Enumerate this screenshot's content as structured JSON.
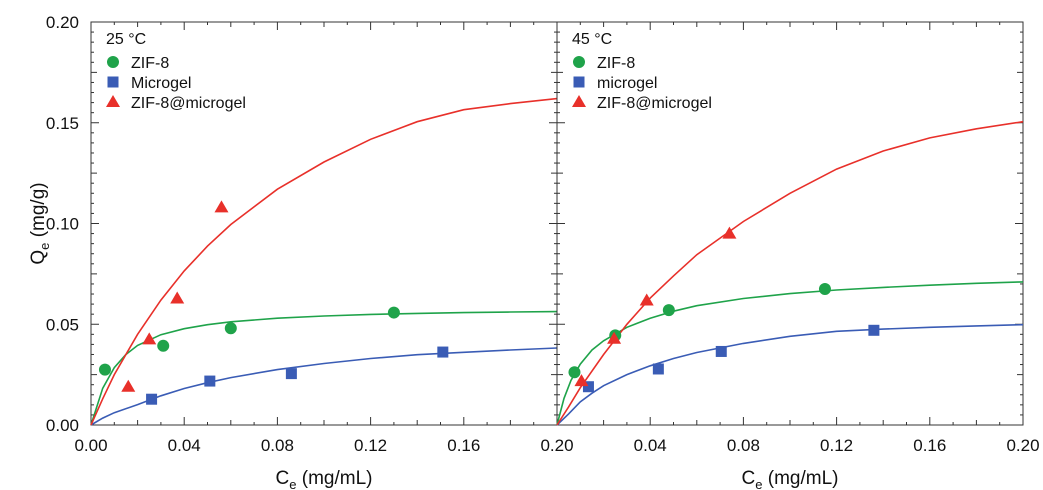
{
  "chart_data": [
    {
      "type": "scatter",
      "panel_label": "25 °C",
      "xlabel": "C",
      "xlabel_sub": "e",
      "xlabel_unit": " (mg/mL)",
      "ylabel": "Q",
      "ylabel_sub": "e",
      "ylabel_unit": " (mg/g)",
      "xlim": [
        0,
        0.2
      ],
      "ylim": [
        0,
        0.2
      ],
      "xticks": [
        "0.00",
        "0.04",
        "0.08",
        "0.12",
        "0.16",
        "0.20"
      ],
      "yticks": [
        "0.00",
        "0.05",
        "0.10",
        "0.15",
        "0.20"
      ],
      "legend_position": "top-left",
      "series": [
        {
          "name": "ZIF-8",
          "marker": "circle",
          "color": "#1fa34a",
          "points": [
            [
              0.006,
              0.0275
            ],
            [
              0.031,
              0.0393
            ],
            [
              0.06,
              0.048
            ],
            [
              0.13,
              0.0558
            ]
          ],
          "fit": [
            [
              0.0,
              0.0
            ],
            [
              0.005,
              0.0182
            ],
            [
              0.01,
              0.0285
            ],
            [
              0.015,
              0.035
            ],
            [
              0.02,
              0.0395
            ],
            [
              0.03,
              0.0448
            ],
            [
              0.04,
              0.0478
            ],
            [
              0.05,
              0.0498
            ],
            [
              0.06,
              0.0512
            ],
            [
              0.08,
              0.053
            ],
            [
              0.1,
              0.0541
            ],
            [
              0.12,
              0.0549
            ],
            [
              0.14,
              0.0554
            ],
            [
              0.16,
              0.0558
            ],
            [
              0.18,
              0.0561
            ],
            [
              0.2,
              0.0563
            ]
          ]
        },
        {
          "name": "Microgel",
          "marker": "square",
          "color": "#3a5cb5",
          "points": [
            [
              0.026,
              0.0128
            ],
            [
              0.051,
              0.0218
            ],
            [
              0.086,
              0.0255
            ],
            [
              0.151,
              0.0362
            ]
          ],
          "fit": [
            [
              0.0,
              0.0
            ],
            [
              0.005,
              0.0034
            ],
            [
              0.01,
              0.0061
            ],
            [
              0.02,
              0.0101
            ],
            [
              0.03,
              0.0145
            ],
            [
              0.04,
              0.0181
            ],
            [
              0.05,
              0.021
            ],
            [
              0.06,
              0.0235
            ],
            [
              0.08,
              0.0275
            ],
            [
              0.1,
              0.0305
            ],
            [
              0.12,
              0.033
            ],
            [
              0.14,
              0.0349
            ],
            [
              0.16,
              0.0361
            ],
            [
              0.18,
              0.0372
            ],
            [
              0.2,
              0.0382
            ]
          ]
        },
        {
          "name": "ZIF-8@microgel",
          "marker": "triangle",
          "color": "#e8302a",
          "points": [
            [
              0.016,
              0.019
            ],
            [
              0.025,
              0.0425
            ],
            [
              0.037,
              0.0628
            ],
            [
              0.056,
              0.108
            ]
          ],
          "fit": [
            [
              0.0,
              0.0
            ],
            [
              0.005,
              0.013
            ],
            [
              0.01,
              0.025
            ],
            [
              0.02,
              0.045
            ],
            [
              0.03,
              0.062
            ],
            [
              0.04,
              0.0765
            ],
            [
              0.05,
              0.0888
            ],
            [
              0.06,
              0.0995
            ],
            [
              0.08,
              0.117
            ],
            [
              0.1,
              0.1305
            ],
            [
              0.12,
              0.1418
            ],
            [
              0.14,
              0.1505
            ],
            [
              0.16,
              0.1565
            ],
            [
              0.18,
              0.1595
            ],
            [
              0.2,
              0.162
            ]
          ]
        }
      ]
    },
    {
      "type": "scatter",
      "panel_label": "45 °C",
      "xlabel": "C",
      "xlabel_sub": "e",
      "xlabel_unit": " (mg/mL)",
      "xlim": [
        0,
        0.2
      ],
      "ylim": [
        0,
        0.2
      ],
      "xticks": [
        "0.00",
        "0.04",
        "0.08",
        "0.12",
        "0.16",
        "0.20"
      ],
      "legend_position": "top-left",
      "series": [
        {
          "name": "ZIF-8",
          "marker": "circle",
          "color": "#1fa34a",
          "points": [
            [
              0.0075,
              0.0262
            ],
            [
              0.025,
              0.0445
            ],
            [
              0.048,
              0.057
            ],
            [
              0.115,
              0.0675
            ]
          ],
          "fit": [
            [
              0.0,
              0.0
            ],
            [
              0.003,
              0.0132
            ],
            [
              0.006,
              0.0222
            ],
            [
              0.01,
              0.0302
            ],
            [
              0.015,
              0.0372
            ],
            [
              0.02,
              0.0418
            ],
            [
              0.03,
              0.0485
            ],
            [
              0.04,
              0.053
            ],
            [
              0.05,
              0.0565
            ],
            [
              0.06,
              0.0592
            ],
            [
              0.08,
              0.0628
            ],
            [
              0.1,
              0.0652
            ],
            [
              0.12,
              0.067
            ],
            [
              0.14,
              0.0683
            ],
            [
              0.16,
              0.0694
            ],
            [
              0.18,
              0.0703
            ],
            [
              0.2,
              0.071
            ]
          ]
        },
        {
          "name": "microgel",
          "marker": "square",
          "color": "#3a5cb5",
          "points": [
            [
              0.0135,
              0.019
            ],
            [
              0.0435,
              0.0278
            ],
            [
              0.0705,
              0.0365
            ],
            [
              0.136,
              0.047
            ]
          ],
          "fit": [
            [
              0.0,
              0.0
            ],
            [
              0.005,
              0.0055
            ],
            [
              0.01,
              0.0115
            ],
            [
              0.015,
              0.0158
            ],
            [
              0.02,
              0.0195
            ],
            [
              0.03,
              0.025
            ],
            [
              0.04,
              0.0294
            ],
            [
              0.05,
              0.033
            ],
            [
              0.06,
              0.036
            ],
            [
              0.08,
              0.0405
            ],
            [
              0.1,
              0.044
            ],
            [
              0.12,
              0.0465
            ],
            [
              0.14,
              0.0476
            ],
            [
              0.16,
              0.0485
            ],
            [
              0.18,
              0.0492
            ],
            [
              0.2,
              0.0498
            ]
          ]
        },
        {
          "name": "ZIF-8@microgel",
          "marker": "triangle",
          "color": "#e8302a",
          "points": [
            [
              0.0105,
              0.0218
            ],
            [
              0.0245,
              0.0428
            ],
            [
              0.0385,
              0.0618
            ],
            [
              0.074,
              0.095
            ]
          ],
          "fit": [
            [
              0.0,
              0.0
            ],
            [
              0.005,
              0.009
            ],
            [
              0.01,
              0.0185
            ],
            [
              0.02,
              0.035
            ],
            [
              0.03,
              0.05
            ],
            [
              0.04,
              0.063
            ],
            [
              0.05,
              0.074
            ],
            [
              0.06,
              0.0845
            ],
            [
              0.08,
              0.101
            ],
            [
              0.1,
              0.115
            ],
            [
              0.12,
              0.127
            ],
            [
              0.14,
              0.136
            ],
            [
              0.16,
              0.1425
            ],
            [
              0.18,
              0.147
            ],
            [
              0.2,
              0.1505
            ]
          ]
        }
      ]
    }
  ]
}
